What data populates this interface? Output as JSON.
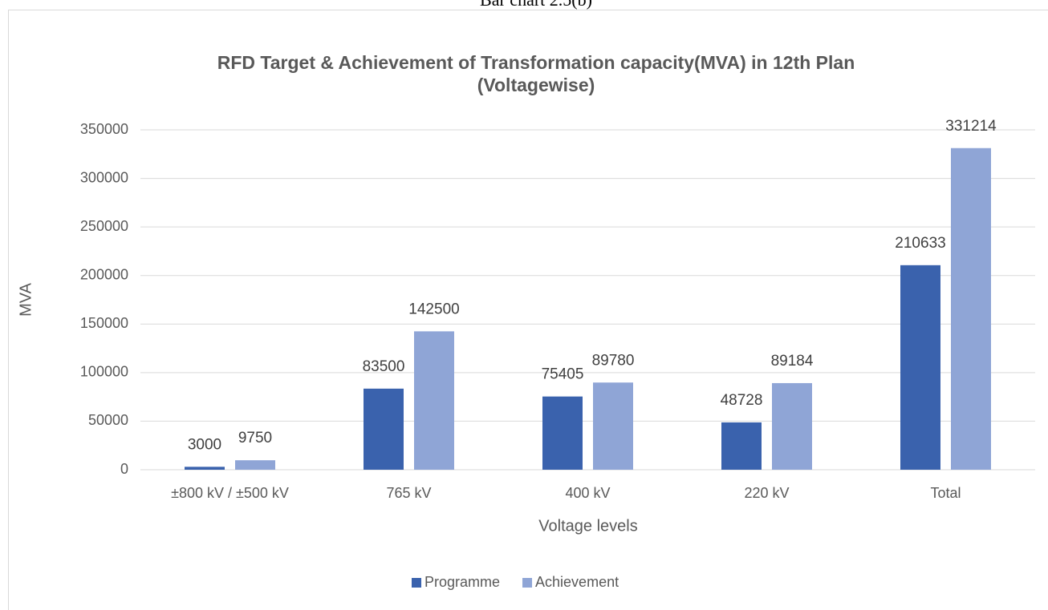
{
  "caption": "Bar chart 2.5(b)",
  "chart_data": {
    "type": "bar",
    "title": [
      "RFD Target & Achievement of Transformation capacity(MVA) in 12th Plan",
      "(Voltagewise)"
    ],
    "x_label": "Voltage levels",
    "y_label": "MVA",
    "categories": [
      "±800 kV /  ±500 kV",
      "765 kV",
      "400 kV",
      "220 kV",
      "Total"
    ],
    "series": [
      {
        "name": "Programme",
        "color": "#3a62ad",
        "values": [
          3000,
          83500,
          75405,
          48728,
          210633
        ]
      },
      {
        "name": "Achievement",
        "color": "#8fa5d6",
        "values": [
          9750,
          142500,
          89780,
          89184,
          331214
        ]
      }
    ],
    "ylim": [
      0,
      350000
    ],
    "yticks": [
      0,
      50000,
      100000,
      150000,
      200000,
      250000,
      300000,
      350000
    ],
    "grid": true,
    "legend": "bottom"
  }
}
